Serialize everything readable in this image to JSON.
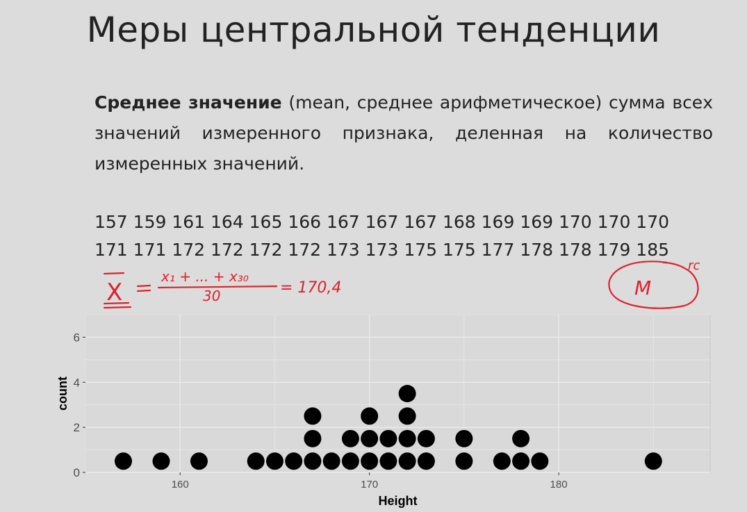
{
  "slide": {
    "title": "Меры центральной тенденции",
    "definition_term": "Среднее значение",
    "definition_paren": " (mean, среднее арифметическое)",
    "definition_rest": " сумма всех значений измеренного признака, деленная на количество измеренных значений.",
    "values_row1": "157 159 161 164 165 166 167 167 167 168 169 169 170 170 170",
    "values_row2": "171 171 172 172 172 172 173 173 175 175 177 178 178 179 185"
  },
  "annotations": {
    "formula_lhs": "X",
    "formula_numerator": "x₁ + ... + x₃₀",
    "formula_denominator": "30",
    "formula_result": "= 170,4",
    "median_symbol": "M",
    "mode_note": "rc",
    "ink_color": "#e0202a"
  },
  "chart_data": {
    "type": "scatter",
    "subtype": "dotplot",
    "xlabel": "Height",
    "ylabel": "count",
    "xlim": [
      155,
      188
    ],
    "ylim": [
      0,
      7
    ],
    "x_ticks": [
      160,
      170,
      180
    ],
    "y_ticks": [
      0,
      2,
      4,
      6
    ],
    "grid": true,
    "dot_color": "#000000",
    "values": [
      157,
      159,
      161,
      164,
      165,
      166,
      167,
      167,
      167,
      168,
      169,
      169,
      170,
      170,
      170,
      171,
      171,
      172,
      172,
      172,
      172,
      173,
      173,
      175,
      175,
      177,
      178,
      178,
      179,
      185
    ]
  }
}
